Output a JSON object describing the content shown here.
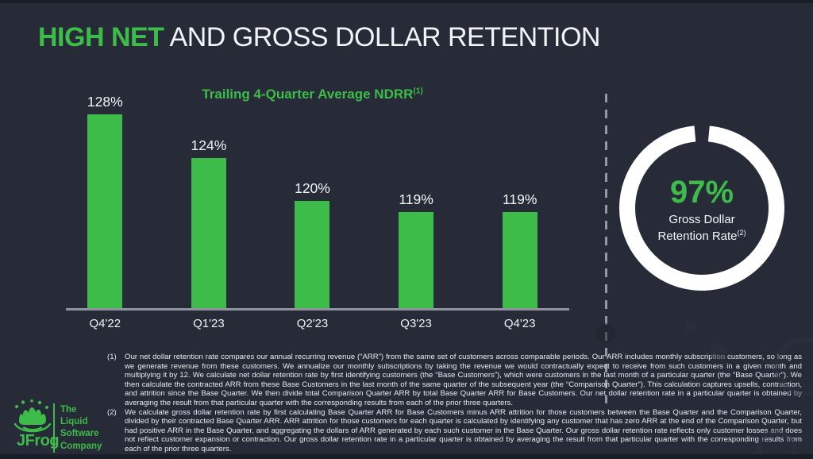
{
  "slide": {
    "title": {
      "highlight": "HIGH NET",
      "rest": " AND GROSS DOLLAR RETENTION"
    },
    "accent_color": "#3EBC49",
    "background_color": "#262B37"
  },
  "chart_data": [
    {
      "type": "bar",
      "title": "Trailing 4-Quarter Average NDRR",
      "title_footnote_marker": "(1)",
      "categories": [
        "Q4'22",
        "Q1'23",
        "Q2'23",
        "Q3'23",
        "Q4'23"
      ],
      "values": [
        128,
        124,
        120,
        119,
        119
      ],
      "value_labels": [
        "128%",
        "124%",
        "120%",
        "119%",
        "119%"
      ],
      "ylabel": "",
      "xlabel": "",
      "ylim": [
        110,
        130
      ],
      "grid": false,
      "legend": false,
      "bar_color": "#3EBC49"
    },
    {
      "type": "pie",
      "subtype": "donut",
      "value": 97,
      "gap_percent": 3,
      "value_label": "97%",
      "label_line1": "Gross Dollar",
      "label_line2": "Retention Rate",
      "label_footnote_marker": "(2)",
      "ring_color": "#FFFFFF"
    }
  ],
  "footnotes": [
    {
      "marker": "(1)",
      "text": "Our net dollar retention rate compares our annual recurring revenue (“ARR”) from the same set of customers across comparable periods. Our ARR includes monthly subscription customers, so long as we generate revenue from these customers. We annualize our monthly subscriptions by taking the revenue we would contractually expect to receive from such customers in a given month and multiplying it by 12. We calculate net dollar retention rate by first identifying customers (the “Base Customers”), which were customers in the last month of a particular quarter (the “Base Quarter”). We then calculate the contracted ARR from these Base Customers in the last month of the same quarter of the subsequent year (the “Comparison Quarter”). This calculation captures upsells, contraction, and attrition since the Base Quarter. We then divide total Comparison Quarter ARR by total Base Quarter ARR for Base Customers. Our net dollar retention rate in a particular quarter is obtained by averaging the result from that particular quarter with the corresponding results from each of the prior three quarters."
    },
    {
      "marker": "(2)",
      "text": "We calculate gross dollar retention rate by first calculating Base Quarter ARR for Base Customers minus ARR attrition for those customers between the Base Quarter and the Comparison Quarter, divided by their contracted Base Quarter ARR. ARR attrition for those customers for each quarter is calculated by identifying any customer that has zero ARR at the end of the Comparison Quarter, but had positive ARR in the Base Quarter, and aggregating the dollars of ARR generated by each such customer in the Base Quarter. Our gross dollar retention rate reflects only customer losses and does not reflect customer expansion or contraction. Our gross dollar retention rate in a particular quarter is obtained by averaging the result from that particular quarter with the corresponding results from each of the prior three quarters."
    }
  ],
  "logo": {
    "wordmark": "JFrog",
    "tagline_lines": [
      "The",
      "Liquid",
      "Software",
      "Company"
    ]
  }
}
